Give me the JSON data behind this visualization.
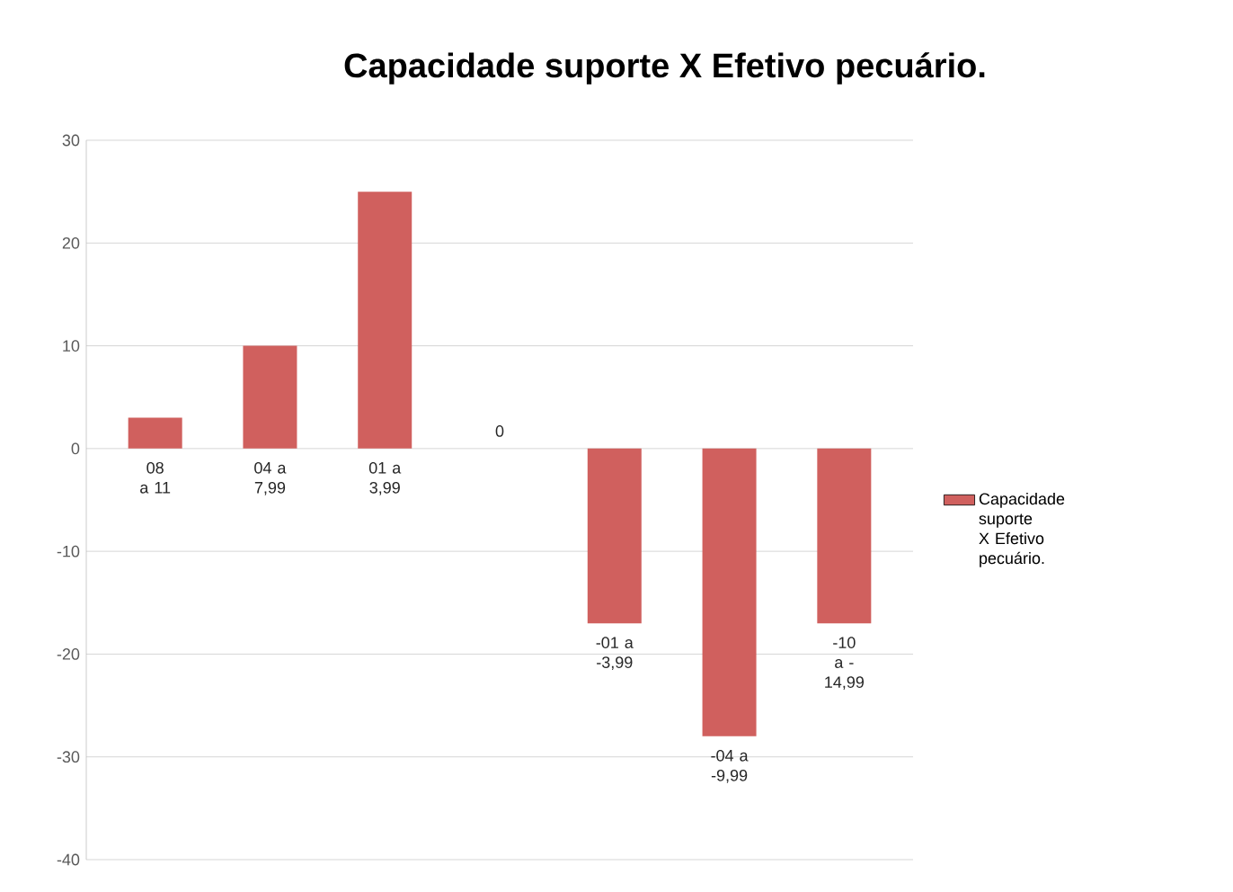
{
  "chart_data": {
    "type": "bar",
    "title": "Capacidade suporte X Efetivo pecuário.",
    "categories": [
      "08 a 11",
      "04 a 7,99",
      "01 a 3,99",
      "0",
      "-01 a -3,99",
      "-04 a -9,99",
      "-10 a -14,99"
    ],
    "series": [
      {
        "name": "Capacidade suporte X Efetivo pecuário.",
        "color": "#d0605e",
        "values": [
          3,
          10,
          25,
          0,
          -17,
          -28,
          -17
        ]
      }
    ],
    "ylim": [
      -40,
      30
    ],
    "yticks": [
      -40,
      -30,
      -20,
      -10,
      0,
      10,
      20,
      30
    ],
    "grid": "y",
    "legend": "right"
  }
}
